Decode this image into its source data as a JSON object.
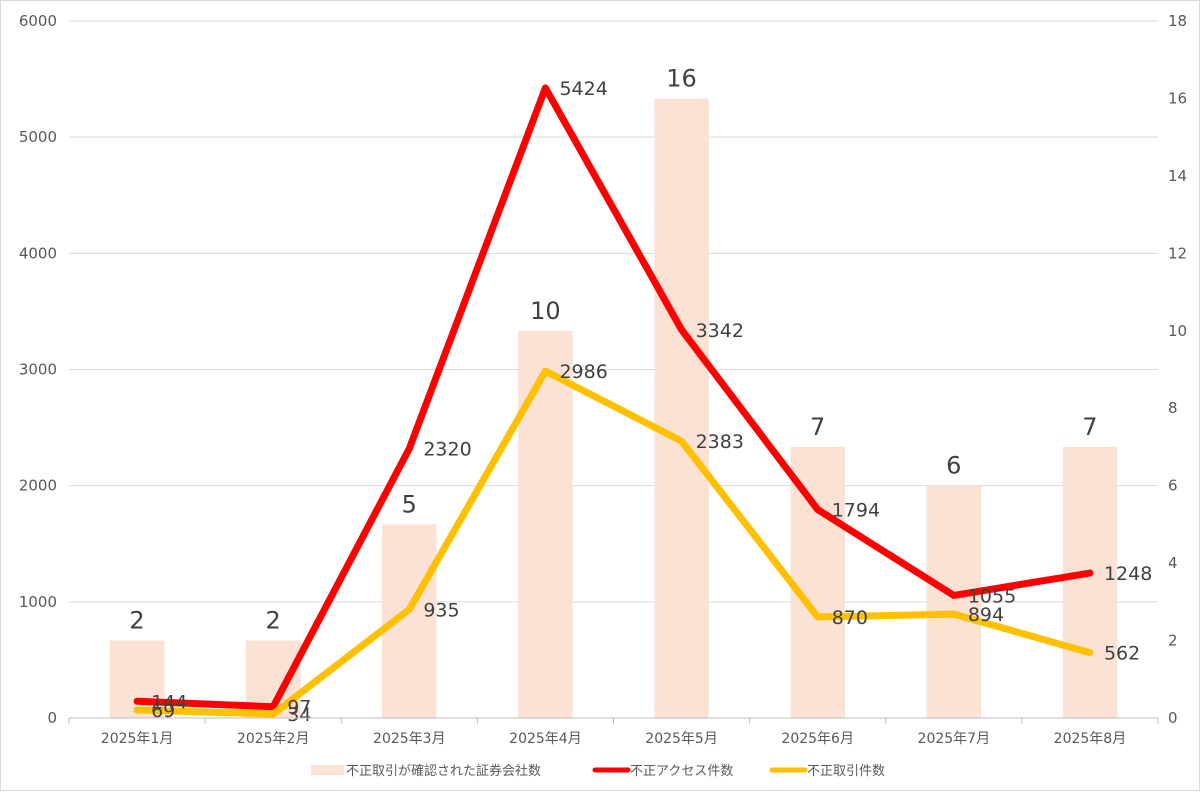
{
  "chart_data": {
    "type": "bar+line",
    "categories": [
      "2025年1月",
      "2025年2月",
      "2025年3月",
      "2025年4月",
      "2025年5月",
      "2025年6月",
      "2025年7月",
      "2025年8月"
    ],
    "left_axis": {
      "min": 0,
      "max": 6000,
      "step": 1000,
      "ticks": [
        "0",
        "1000",
        "2000",
        "3000",
        "4000",
        "5000",
        "6000"
      ]
    },
    "right_axis": {
      "min": 0,
      "max": 18,
      "step": 2,
      "ticks": [
        "0",
        "2",
        "4",
        "6",
        "8",
        "10",
        "12",
        "14",
        "16",
        "18"
      ]
    },
    "grid": true,
    "legend_position": "bottom",
    "series": [
      {
        "name": "不正取引が確認された証券会社数",
        "type": "bar",
        "axis": "right",
        "color": "#fbe2d5",
        "values": [
          2,
          2,
          5,
          10,
          16,
          7,
          6,
          7
        ]
      },
      {
        "name": "不正アクセス件数",
        "type": "line",
        "axis": "left",
        "color": "#ff0000",
        "values": [
          144,
          97,
          2320,
          5424,
          3342,
          1794,
          1055,
          1248
        ]
      },
      {
        "name": "不正取引件数",
        "type": "line",
        "axis": "left",
        "color": "#ffc000",
        "values": [
          69,
          34,
          935,
          2986,
          2383,
          870,
          894,
          562
        ]
      }
    ]
  }
}
